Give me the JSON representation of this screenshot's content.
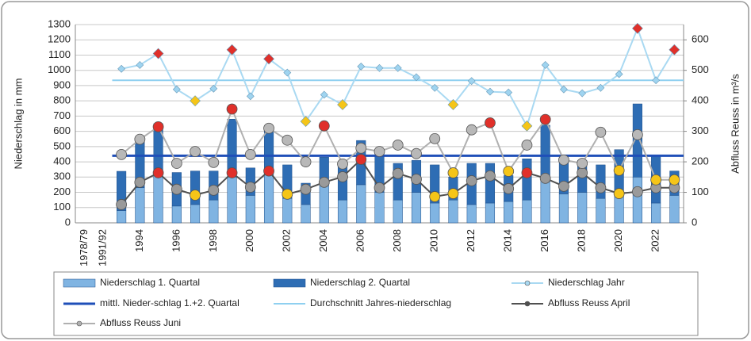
{
  "chart_data": {
    "type": "combo",
    "y_label": "Niederschlag in mm",
    "y2_label": "Abfluss Reuss in m³/s",
    "categories": [
      "1978/79",
      "1991/92",
      null,
      "1994",
      null,
      "1996",
      null,
      "1998",
      null,
      "2000",
      null,
      "2002",
      null,
      "2004",
      null,
      "2006",
      null,
      "2008",
      null,
      "2010",
      null,
      "2012",
      null,
      "2014",
      null,
      "2016",
      null,
      "2018",
      null,
      "2020",
      null,
      "2022",
      null
    ],
    "ylim": [
      0,
      1300
    ],
    "yticks": [
      0,
      100,
      200,
      300,
      400,
      500,
      600,
      700,
      800,
      900,
      1000,
      1100,
      1200,
      1300
    ],
    "y2lim": [
      0,
      650
    ],
    "y2ticks": [
      0,
      100,
      200,
      300,
      400,
      500,
      600
    ],
    "grid": true,
    "legend": "bottom",
    "series": [
      {
        "name": "Niederschlag 1. Quartal",
        "kind": "bar",
        "color": "#80b4e2",
        "values": [
          null,
          null,
          80,
          230,
          320,
          110,
          120,
          150,
          300,
          180,
          330,
          160,
          120,
          250,
          150,
          250,
          200,
          150,
          200,
          130,
          150,
          120,
          130,
          140,
          150,
          300,
          190,
          200,
          160,
          180,
          300,
          130,
          180
        ]
      },
      {
        "name": "Niederschlag 2. Quartal",
        "kind": "bar",
        "color": "#2e6db4",
        "values": [
          null,
          null,
          258,
          300,
          330,
          220,
          220,
          190,
          380,
          180,
          290,
          220,
          140,
          180,
          240,
          290,
          260,
          240,
          210,
          250,
          150,
          270,
          260,
          170,
          270,
          340,
          210,
          210,
          220,
          300,
          480,
          310,
          160
        ]
      },
      {
        "name": "Niederschlag Jahr",
        "kind": "line",
        "color": "#a9d9f2",
        "values": [
          null,
          null,
          1010,
          1035,
          1110,
          875,
          800,
          880,
          1135,
          830,
          1075,
          985,
          665,
          840,
          775,
          1025,
          1015,
          1015,
          955,
          885,
          775,
          930,
          860,
          855,
          635,
          1035,
          875,
          850,
          885,
          975,
          1275,
          935,
          1135
        ],
        "marker_colors": [
          null,
          null,
          "#9fd4f0",
          "#9fd4f0",
          "#e0302a",
          "#9fd4f0",
          "#f5c518",
          "#9fd4f0",
          "#e0302a",
          "#9fd4f0",
          "#e0302a",
          "#9fd4f0",
          "#f5c518",
          "#9fd4f0",
          "#f5c518",
          "#9fd4f0",
          "#9fd4f0",
          "#9fd4f0",
          "#9fd4f0",
          "#9fd4f0",
          "#f5c518",
          "#9fd4f0",
          "#9fd4f0",
          "#9fd4f0",
          "#f5c518",
          "#9fd4f0",
          "#9fd4f0",
          "#9fd4f0",
          "#9fd4f0",
          "#9fd4f0",
          "#e0302a",
          "#9fd4f0",
          "#e0302a"
        ]
      },
      {
        "name": "mittl. Nieder-schlag 1.+2. Quartal",
        "kind": "hline",
        "color": "#1f4fb8",
        "value": 440
      },
      {
        "name": "Durchschnitt Jahres-niederschlag",
        "kind": "hline",
        "color": "#8fd0f0",
        "value": 935
      },
      {
        "name": "Abfluss Reuss April",
        "kind": "line",
        "axis": "y2",
        "color": "#505050",
        "values": [
          null,
          null,
          60,
          133,
          164,
          110,
          91,
          107,
          164,
          117,
          170,
          94,
          110,
          133,
          151,
          208,
          115,
          162,
          143,
          86,
          96,
          138,
          154,
          112,
          164,
          146,
          120,
          164,
          115,
          96,
          102,
          115,
          115
        ],
        "marker_colors": [
          null,
          null,
          "#9a9a9a",
          "#9a9a9a",
          "#e0302a",
          "#9a9a9a",
          "#f5c518",
          "#9a9a9a",
          "#e0302a",
          "#9a9a9a",
          "#e0302a",
          "#f5c518",
          "#9a9a9a",
          "#9a9a9a",
          "#9a9a9a",
          "#e0302a",
          "#9a9a9a",
          "#9a9a9a",
          "#9a9a9a",
          "#f5c518",
          "#f5c518",
          "#9a9a9a",
          "#9a9a9a",
          "#9a9a9a",
          "#e0302a",
          "#9a9a9a",
          "#9a9a9a",
          "#9a9a9a",
          "#9a9a9a",
          "#f5c518",
          "#9a9a9a",
          "#9a9a9a",
          "#9a9a9a"
        ]
      },
      {
        "name": "Abfluss Reuss Juni",
        "kind": "line",
        "axis": "y2",
        "color": "#b0b0b0",
        "values": [
          null,
          null,
          224,
          274,
          315,
          195,
          234,
          198,
          373,
          224,
          310,
          271,
          200,
          318,
          193,
          245,
          234,
          255,
          227,
          276,
          164,
          305,
          328,
          169,
          255,
          339,
          206,
          195,
          297,
          172,
          289,
          141,
          141
        ],
        "marker_colors": [
          null,
          null,
          "#b8b8b8",
          "#b8b8b8",
          "#e0302a",
          "#b8b8b8",
          "#b8b8b8",
          "#b8b8b8",
          "#e0302a",
          "#b8b8b8",
          "#b8b8b8",
          "#b8b8b8",
          "#b8b8b8",
          "#e0302a",
          "#b8b8b8",
          "#b8b8b8",
          "#b8b8b8",
          "#b8b8b8",
          "#b8b8b8",
          "#b8b8b8",
          "#f5c518",
          "#b8b8b8",
          "#e0302a",
          "#f5c518",
          "#b8b8b8",
          "#e0302a",
          "#b8b8b8",
          "#b8b8b8",
          "#b8b8b8",
          "#f5c518",
          "#b8b8b8",
          "#f5c518",
          "#f5c518"
        ]
      }
    ]
  }
}
